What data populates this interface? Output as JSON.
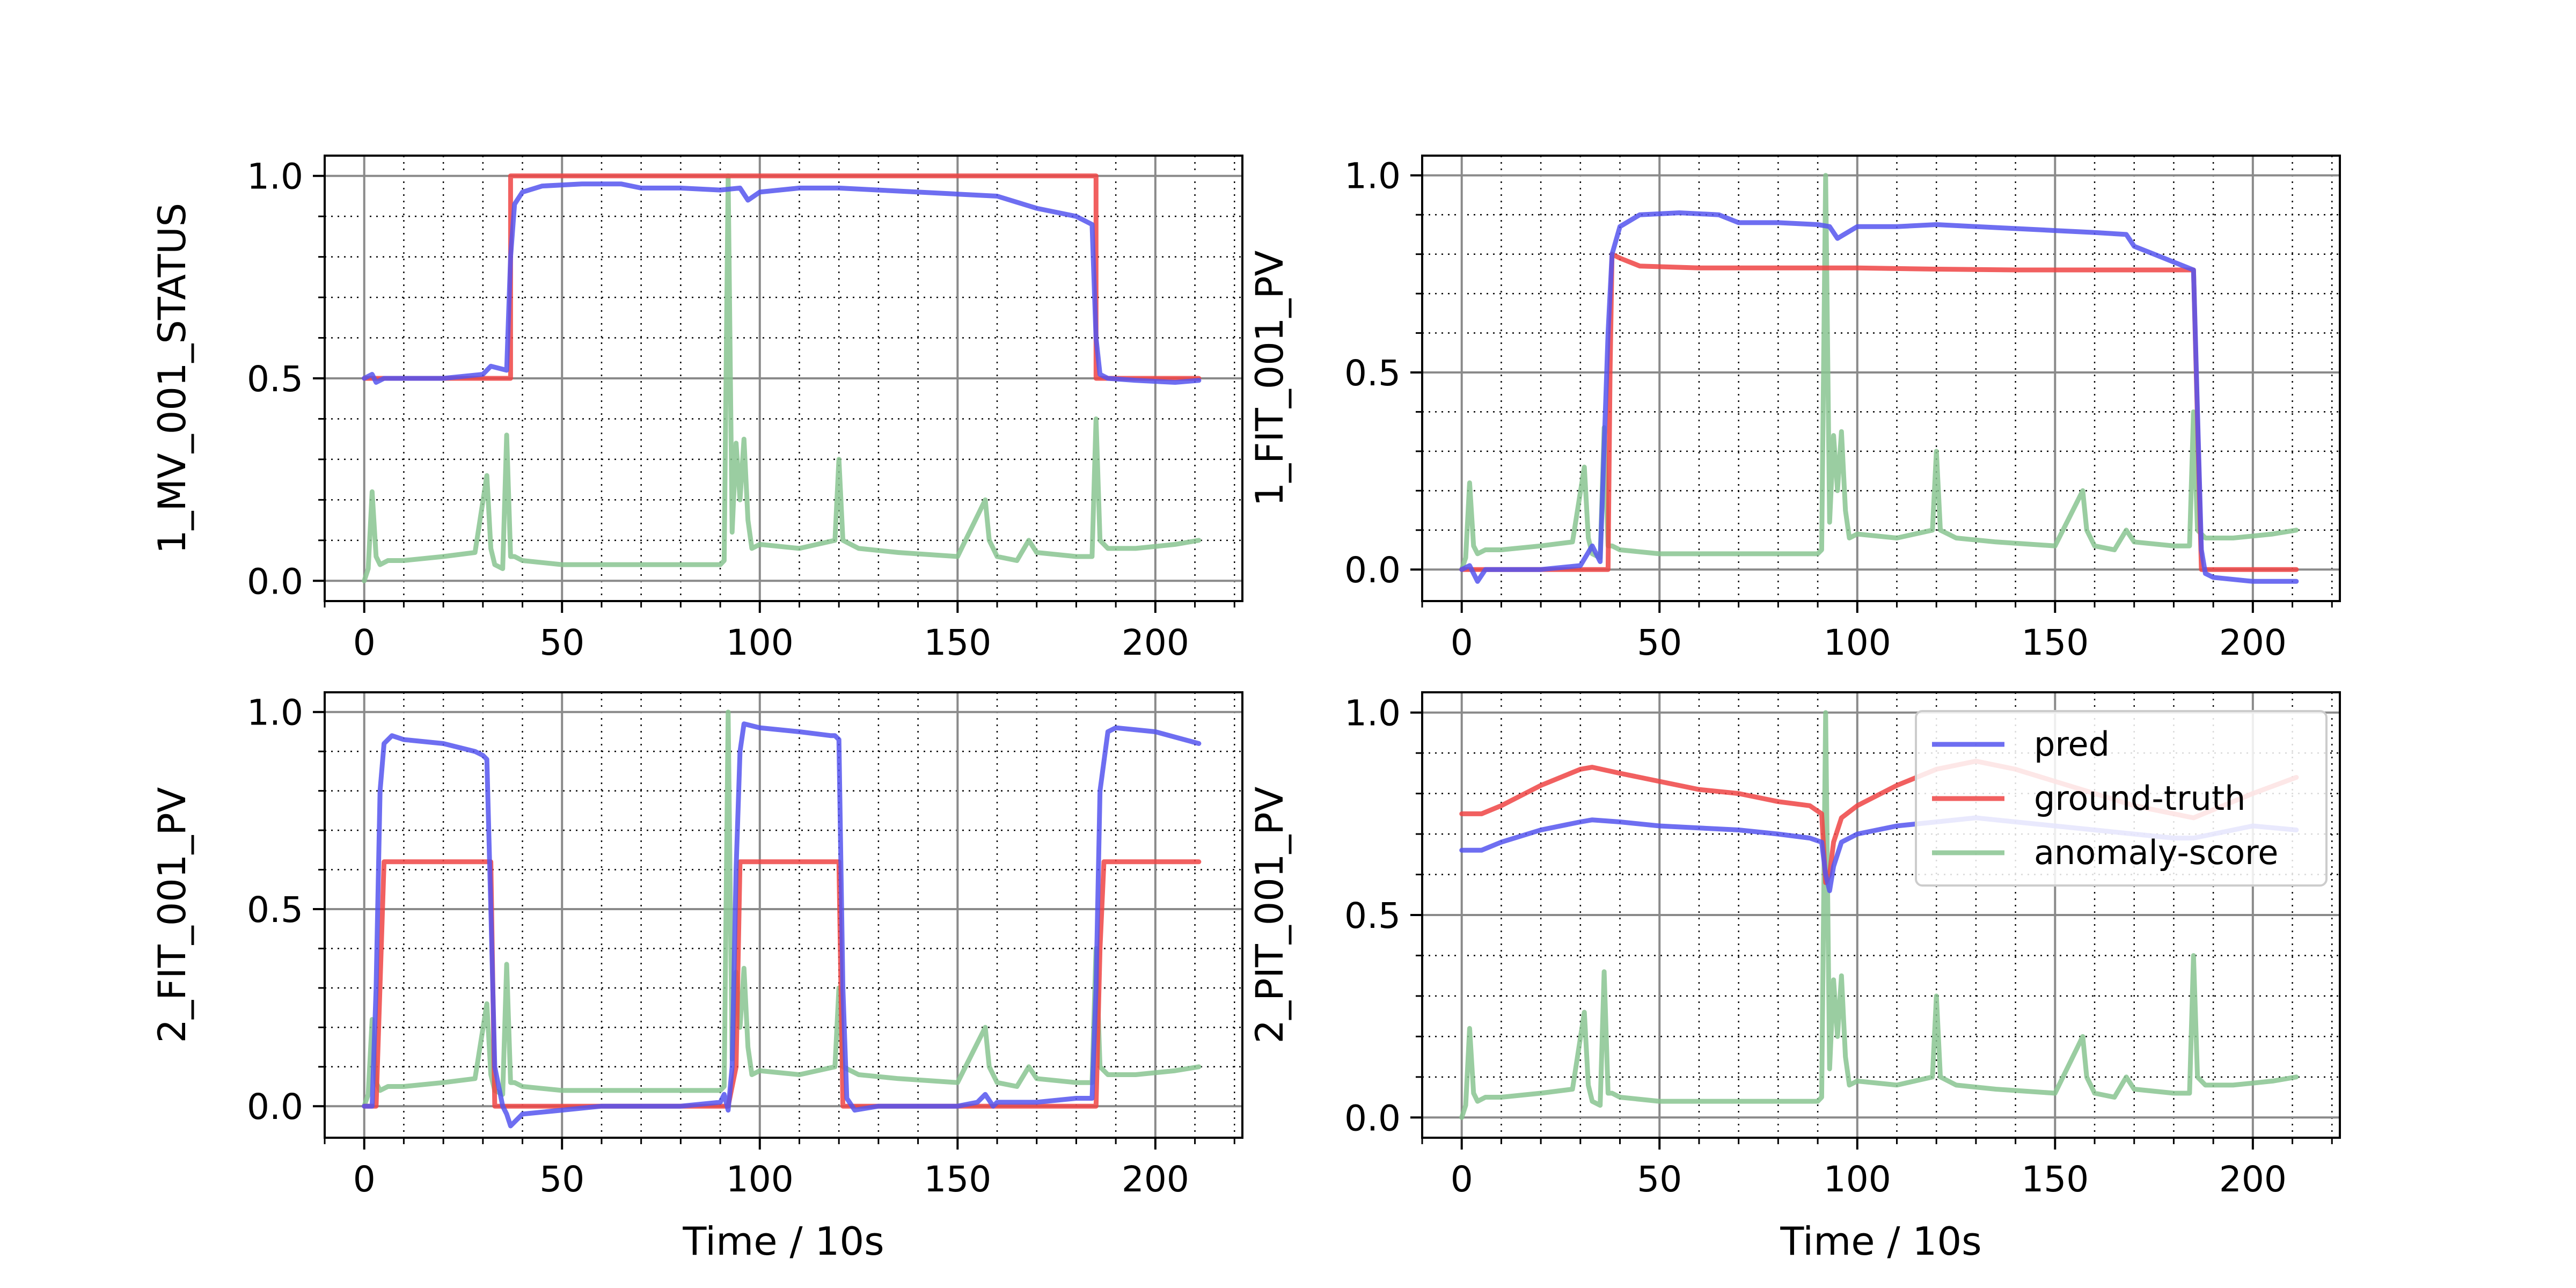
{
  "figure": {
    "colors": {
      "pred": "#5555ee",
      "ground_truth": "#ee4444",
      "anomaly_score": "#88c490"
    }
  },
  "chart_data": [
    {
      "type": "line",
      "panel": "top-left",
      "ylabel": "1_MV_001_STATUS",
      "xlabel": "",
      "xlim": [
        -10,
        222
      ],
      "ylim": [
        -0.05,
        1.05
      ],
      "xticks": [
        0,
        50,
        100,
        150,
        200
      ],
      "xtick_labels": [
        "0",
        "50",
        "100",
        "150",
        "200"
      ],
      "yticks": [
        0.0,
        0.5,
        1.0
      ],
      "ytick_labels": [
        "0.0",
        "0.5",
        "1.0"
      ],
      "grid": true,
      "series": [
        {
          "name": "pred",
          "color": "#5555ee",
          "x": [
            0,
            2,
            3,
            5,
            10,
            20,
            30,
            32,
            36,
            37,
            38,
            40,
            45,
            55,
            65,
            70,
            80,
            90,
            95,
            97,
            100,
            110,
            120,
            130,
            140,
            150,
            160,
            170,
            175,
            180,
            184,
            185,
            186,
            188,
            195,
            205,
            211
          ],
          "y": [
            0.5,
            0.51,
            0.49,
            0.5,
            0.5,
            0.5,
            0.51,
            0.53,
            0.52,
            0.8,
            0.93,
            0.96,
            0.975,
            0.98,
            0.98,
            0.97,
            0.97,
            0.965,
            0.97,
            0.94,
            0.96,
            0.97,
            0.97,
            0.965,
            0.96,
            0.955,
            0.95,
            0.92,
            0.91,
            0.9,
            0.88,
            0.6,
            0.51,
            0.5,
            0.495,
            0.49,
            0.495
          ]
        },
        {
          "name": "ground-truth",
          "color": "#ee4444",
          "x": [
            0,
            37,
            37,
            185,
            185,
            211
          ],
          "y": [
            0.5,
            0.5,
            1.0,
            1.0,
            0.5,
            0.5
          ]
        },
        {
          "name": "anomaly-score",
          "color": "#88c490",
          "x": [
            0,
            1,
            2,
            3,
            4,
            6,
            10,
            20,
            28,
            31,
            32,
            33,
            35,
            36,
            37,
            38,
            40,
            50,
            60,
            70,
            80,
            90,
            91,
            92,
            93,
            94,
            95,
            96,
            97,
            98,
            100,
            110,
            119,
            120,
            121,
            125,
            135,
            150,
            157,
            158,
            160,
            165,
            168,
            170,
            180,
            184,
            185,
            186,
            188,
            195,
            205,
            211
          ],
          "y": [
            0.0,
            0.03,
            0.22,
            0.06,
            0.04,
            0.05,
            0.05,
            0.06,
            0.07,
            0.26,
            0.08,
            0.04,
            0.03,
            0.36,
            0.06,
            0.06,
            0.05,
            0.04,
            0.04,
            0.04,
            0.04,
            0.04,
            0.05,
            1.0,
            0.12,
            0.34,
            0.2,
            0.35,
            0.15,
            0.08,
            0.09,
            0.08,
            0.1,
            0.3,
            0.1,
            0.08,
            0.07,
            0.06,
            0.2,
            0.1,
            0.06,
            0.05,
            0.1,
            0.07,
            0.06,
            0.06,
            0.4,
            0.1,
            0.08,
            0.08,
            0.09,
            0.1
          ]
        }
      ]
    },
    {
      "type": "line",
      "panel": "top-right",
      "ylabel": "1_FIT_001_PV",
      "xlabel": "",
      "xlim": [
        -10,
        222
      ],
      "ylim": [
        -0.08,
        1.05
      ],
      "xticks": [
        0,
        50,
        100,
        150,
        200
      ],
      "xtick_labels": [
        "0",
        "50",
        "100",
        "150",
        "200"
      ],
      "yticks": [
        0.0,
        0.5,
        1.0
      ],
      "ytick_labels": [
        "0.0",
        "0.5",
        "1.0"
      ],
      "grid": true,
      "series": [
        {
          "name": "pred",
          "color": "#5555ee",
          "x": [
            0,
            2,
            4,
            6,
            10,
            20,
            30,
            33,
            35,
            37,
            38,
            40,
            45,
            55,
            65,
            70,
            80,
            90,
            93,
            95,
            100,
            110,
            120,
            130,
            140,
            150,
            160,
            168,
            170,
            175,
            180,
            185,
            186,
            187,
            188,
            190,
            200,
            211
          ],
          "y": [
            0.0,
            0.01,
            -0.03,
            0.0,
            0.0,
            0.0,
            0.01,
            0.06,
            0.02,
            0.6,
            0.8,
            0.87,
            0.9,
            0.905,
            0.9,
            0.88,
            0.88,
            0.875,
            0.87,
            0.84,
            0.87,
            0.87,
            0.875,
            0.87,
            0.865,
            0.86,
            0.855,
            0.85,
            0.82,
            0.8,
            0.78,
            0.76,
            0.4,
            0.05,
            -0.01,
            -0.02,
            -0.03,
            -0.03
          ]
        },
        {
          "name": "ground-truth",
          "color": "#ee4444",
          "x": [
            0,
            10,
            20,
            30,
            37,
            37.5,
            38,
            40,
            45,
            60,
            80,
            100,
            120,
            140,
            160,
            180,
            185,
            187,
            211
          ],
          "y": [
            0.0,
            0.0,
            0.0,
            0.0,
            0.0,
            0.5,
            0.8,
            0.79,
            0.77,
            0.765,
            0.765,
            0.765,
            0.762,
            0.76,
            0.76,
            0.76,
            0.76,
            0.0,
            0.0
          ]
        },
        {
          "name": "anomaly-score",
          "color": "#88c490",
          "x": [
            0,
            1,
            2,
            3,
            4,
            6,
            10,
            20,
            28,
            31,
            32,
            33,
            35,
            36,
            37,
            38,
            40,
            50,
            60,
            70,
            80,
            90,
            91,
            92,
            93,
            94,
            95,
            96,
            97,
            98,
            100,
            110,
            119,
            120,
            121,
            125,
            135,
            150,
            157,
            158,
            160,
            165,
            168,
            170,
            180,
            184,
            185,
            186,
            188,
            195,
            205,
            211
          ],
          "y": [
            0.0,
            0.03,
            0.22,
            0.06,
            0.04,
            0.05,
            0.05,
            0.06,
            0.07,
            0.26,
            0.08,
            0.04,
            0.03,
            0.36,
            0.06,
            0.06,
            0.05,
            0.04,
            0.04,
            0.04,
            0.04,
            0.04,
            0.05,
            1.0,
            0.12,
            0.34,
            0.2,
            0.35,
            0.15,
            0.08,
            0.09,
            0.08,
            0.1,
            0.3,
            0.1,
            0.08,
            0.07,
            0.06,
            0.2,
            0.1,
            0.06,
            0.05,
            0.1,
            0.07,
            0.06,
            0.06,
            0.4,
            0.1,
            0.08,
            0.08,
            0.09,
            0.1
          ]
        }
      ]
    },
    {
      "type": "line",
      "panel": "bottom-left",
      "ylabel": "2_FIT_001_PV",
      "xlabel": "Time / 10s",
      "xlim": [
        -10,
        222
      ],
      "ylim": [
        -0.08,
        1.05
      ],
      "xticks": [
        0,
        50,
        100,
        150,
        200
      ],
      "xtick_labels": [
        "0",
        "50",
        "100",
        "150",
        "200"
      ],
      "yticks": [
        0.0,
        0.5,
        1.0
      ],
      "ytick_labels": [
        "0.0",
        "0.5",
        "1.0"
      ],
      "grid": true,
      "series": [
        {
          "name": "pred",
          "color": "#5555ee",
          "x": [
            0,
            2,
            3,
            4,
            5,
            7,
            10,
            20,
            28,
            30,
            31,
            32,
            33,
            35,
            36,
            37,
            40,
            50,
            60,
            70,
            80,
            90,
            91,
            92,
            93,
            94,
            95,
            96,
            100,
            110,
            118,
            119,
            120,
            121,
            122,
            124,
            130,
            140,
            150,
            155,
            157,
            159,
            160,
            170,
            180,
            184,
            185,
            186,
            188,
            190,
            200,
            211
          ],
          "y": [
            0.0,
            0.0,
            0.3,
            0.8,
            0.92,
            0.94,
            0.93,
            0.92,
            0.9,
            0.89,
            0.88,
            0.5,
            0.1,
            0.0,
            -0.02,
            -0.05,
            -0.02,
            -0.01,
            0.0,
            0.0,
            0.0,
            0.01,
            0.03,
            -0.01,
            0.1,
            0.6,
            0.9,
            0.97,
            0.96,
            0.95,
            0.94,
            0.94,
            0.93,
            0.3,
            0.02,
            -0.01,
            0.0,
            0.0,
            0.0,
            0.01,
            0.03,
            0.0,
            0.01,
            0.01,
            0.02,
            0.02,
            0.3,
            0.8,
            0.95,
            0.96,
            0.95,
            0.92
          ]
        },
        {
          "name": "ground-truth",
          "color": "#ee4444",
          "x": [
            0,
            3,
            5,
            30,
            32,
            33,
            92,
            94,
            95,
            120,
            121,
            122,
            185,
            186,
            187,
            211
          ],
          "y": [
            0.0,
            0.0,
            0.62,
            0.62,
            0.62,
            0.0,
            0.0,
            0.1,
            0.62,
            0.62,
            0.0,
            0.0,
            0.0,
            0.4,
            0.62,
            0.62
          ]
        },
        {
          "name": "anomaly-score",
          "color": "#88c490",
          "x": [
            0,
            1,
            2,
            3,
            4,
            6,
            10,
            20,
            28,
            31,
            32,
            33,
            35,
            36,
            37,
            38,
            40,
            50,
            60,
            70,
            80,
            90,
            91,
            92,
            93,
            94,
            95,
            96,
            97,
            98,
            100,
            110,
            119,
            120,
            121,
            125,
            135,
            150,
            157,
            158,
            160,
            165,
            168,
            170,
            180,
            184,
            185,
            186,
            188,
            195,
            205,
            211
          ],
          "y": [
            0.0,
            0.03,
            0.22,
            0.06,
            0.04,
            0.05,
            0.05,
            0.06,
            0.07,
            0.26,
            0.08,
            0.04,
            0.03,
            0.36,
            0.06,
            0.06,
            0.05,
            0.04,
            0.04,
            0.04,
            0.04,
            0.04,
            0.05,
            1.0,
            0.12,
            0.34,
            0.2,
            0.35,
            0.15,
            0.08,
            0.09,
            0.08,
            0.1,
            0.3,
            0.1,
            0.08,
            0.07,
            0.06,
            0.2,
            0.1,
            0.06,
            0.05,
            0.1,
            0.07,
            0.06,
            0.06,
            0.4,
            0.1,
            0.08,
            0.08,
            0.09,
            0.1
          ]
        }
      ]
    },
    {
      "type": "line",
      "panel": "bottom-right",
      "ylabel": "2_PIT_001_PV",
      "xlabel": "Time / 10s",
      "xlim": [
        -10,
        222
      ],
      "ylim": [
        -0.05,
        1.05
      ],
      "xticks": [
        0,
        50,
        100,
        150,
        200
      ],
      "xtick_labels": [
        "0",
        "50",
        "100",
        "150",
        "200"
      ],
      "yticks": [
        0.0,
        0.5,
        1.0
      ],
      "ytick_labels": [
        "0.0",
        "0.5",
        "1.0"
      ],
      "grid": true,
      "legend": {
        "placement": "upper-right",
        "entries": [
          "pred",
          "ground-truth",
          "anomaly-score"
        ]
      },
      "series": [
        {
          "name": "pred",
          "color": "#5555ee",
          "x": [
            0,
            5,
            10,
            20,
            30,
            33,
            40,
            50,
            60,
            70,
            80,
            88,
            91,
            92,
            93,
            94,
            96,
            100,
            110,
            120,
            130,
            140,
            150,
            160,
            170,
            180,
            185,
            190,
            200,
            211
          ],
          "y": [
            0.66,
            0.66,
            0.68,
            0.71,
            0.73,
            0.735,
            0.73,
            0.72,
            0.715,
            0.71,
            0.7,
            0.69,
            0.68,
            0.6,
            0.56,
            0.62,
            0.68,
            0.7,
            0.72,
            0.73,
            0.74,
            0.73,
            0.72,
            0.71,
            0.7,
            0.69,
            0.69,
            0.7,
            0.72,
            0.71
          ]
        },
        {
          "name": "ground-truth",
          "color": "#ee4444",
          "x": [
            0,
            5,
            10,
            20,
            30,
            33,
            40,
            50,
            60,
            70,
            80,
            88,
            91,
            92,
            93,
            94,
            96,
            100,
            110,
            120,
            130,
            140,
            150,
            160,
            170,
            180,
            185,
            190,
            200,
            211
          ],
          "y": [
            0.75,
            0.75,
            0.77,
            0.82,
            0.86,
            0.865,
            0.85,
            0.83,
            0.81,
            0.8,
            0.78,
            0.77,
            0.75,
            0.58,
            0.6,
            0.68,
            0.74,
            0.77,
            0.82,
            0.86,
            0.88,
            0.86,
            0.83,
            0.8,
            0.77,
            0.75,
            0.74,
            0.76,
            0.8,
            0.84
          ]
        },
        {
          "name": "anomaly-score",
          "color": "#88c490",
          "x": [
            0,
            1,
            2,
            3,
            4,
            6,
            10,
            20,
            28,
            31,
            32,
            33,
            35,
            36,
            37,
            38,
            40,
            50,
            60,
            70,
            80,
            90,
            91,
            92,
            93,
            94,
            95,
            96,
            97,
            98,
            100,
            110,
            119,
            120,
            121,
            125,
            135,
            150,
            157,
            158,
            160,
            165,
            168,
            170,
            180,
            184,
            185,
            186,
            188,
            195,
            205,
            211
          ],
          "y": [
            0.0,
            0.03,
            0.22,
            0.06,
            0.04,
            0.05,
            0.05,
            0.06,
            0.07,
            0.26,
            0.08,
            0.04,
            0.03,
            0.36,
            0.06,
            0.06,
            0.05,
            0.04,
            0.04,
            0.04,
            0.04,
            0.04,
            0.05,
            1.0,
            0.12,
            0.34,
            0.2,
            0.35,
            0.15,
            0.08,
            0.09,
            0.08,
            0.1,
            0.3,
            0.1,
            0.08,
            0.07,
            0.06,
            0.2,
            0.1,
            0.06,
            0.05,
            0.1,
            0.07,
            0.06,
            0.06,
            0.4,
            0.1,
            0.08,
            0.08,
            0.09,
            0.1
          ]
        }
      ]
    }
  ]
}
